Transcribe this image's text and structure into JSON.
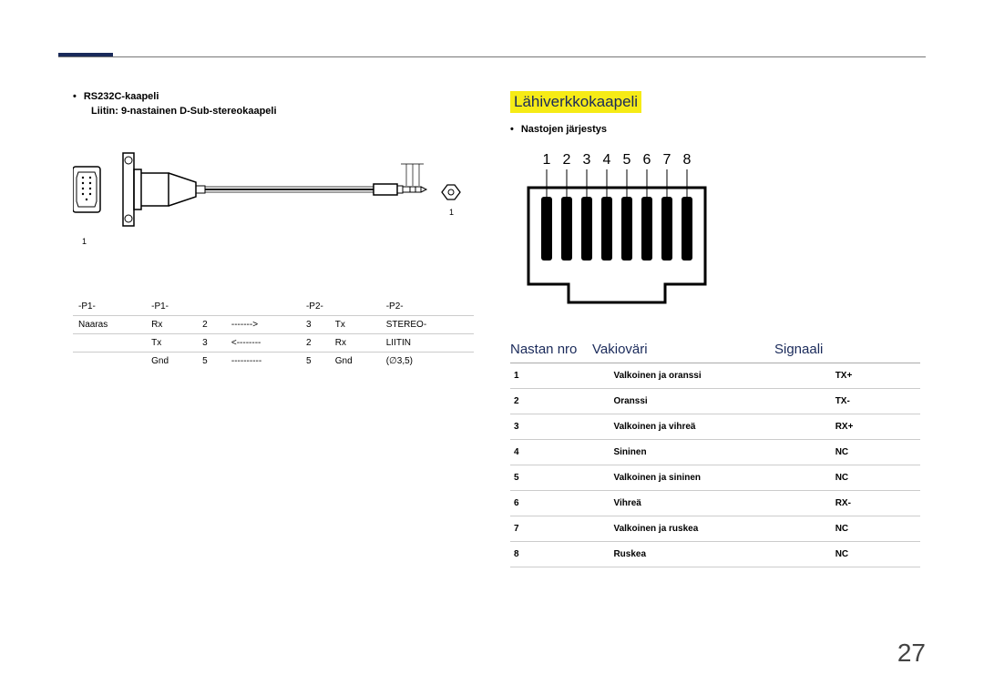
{
  "page_number": "27",
  "colors": {
    "accent": "#1a2a5a",
    "highlight": "#f6eb16",
    "rule": "#777777",
    "text": "#000000"
  },
  "left": {
    "bullet_prefix": "•",
    "title": "RS232C-kaapeli",
    "subtitle": "Liitin: 9-nastainen D-Sub-stereokaapeli",
    "label_1_left": "1",
    "label_1_right": "1",
    "table": {
      "headers": [
        "-P1-",
        "-P1-",
        "",
        "-P2-",
        "",
        "-P2-"
      ],
      "rows": [
        [
          "Naaras",
          "Rx",
          "2",
          "------->",
          "3",
          "Tx",
          "STEREO-"
        ],
        [
          "",
          "Tx",
          "3",
          "<--------",
          "2",
          "Rx",
          "LIITIN"
        ],
        [
          "",
          "Gnd",
          "5",
          "----------",
          "5",
          "Gnd",
          "(∅3,5)"
        ]
      ]
    }
  },
  "right": {
    "section_title": "Lähiverkkokaapeli",
    "bullet_label": "Nastojen järjestys",
    "pin_numbers": [
      "1",
      "2",
      "3",
      "4",
      "5",
      "6",
      "7",
      "8"
    ],
    "headers": {
      "col1": "Nastan nro",
      "col2": "Vakioväri",
      "col3": "Signaali"
    },
    "rows": [
      {
        "n": "1",
        "c": "Valkoinen ja oranssi",
        "s": "TX+"
      },
      {
        "n": "2",
        "c": "Oranssi",
        "s": "TX-"
      },
      {
        "n": "3",
        "c": "Valkoinen ja vihreä",
        "s": "RX+"
      },
      {
        "n": "4",
        "c": "Sininen",
        "s": "NC"
      },
      {
        "n": "5",
        "c": "Valkoinen ja sininen",
        "s": "NC"
      },
      {
        "n": "6",
        "c": "Vihreä",
        "s": "RX-"
      },
      {
        "n": "7",
        "c": "Valkoinen ja ruskea",
        "s": "NC"
      },
      {
        "n": "8",
        "c": "Ruskea",
        "s": "NC"
      }
    ]
  }
}
